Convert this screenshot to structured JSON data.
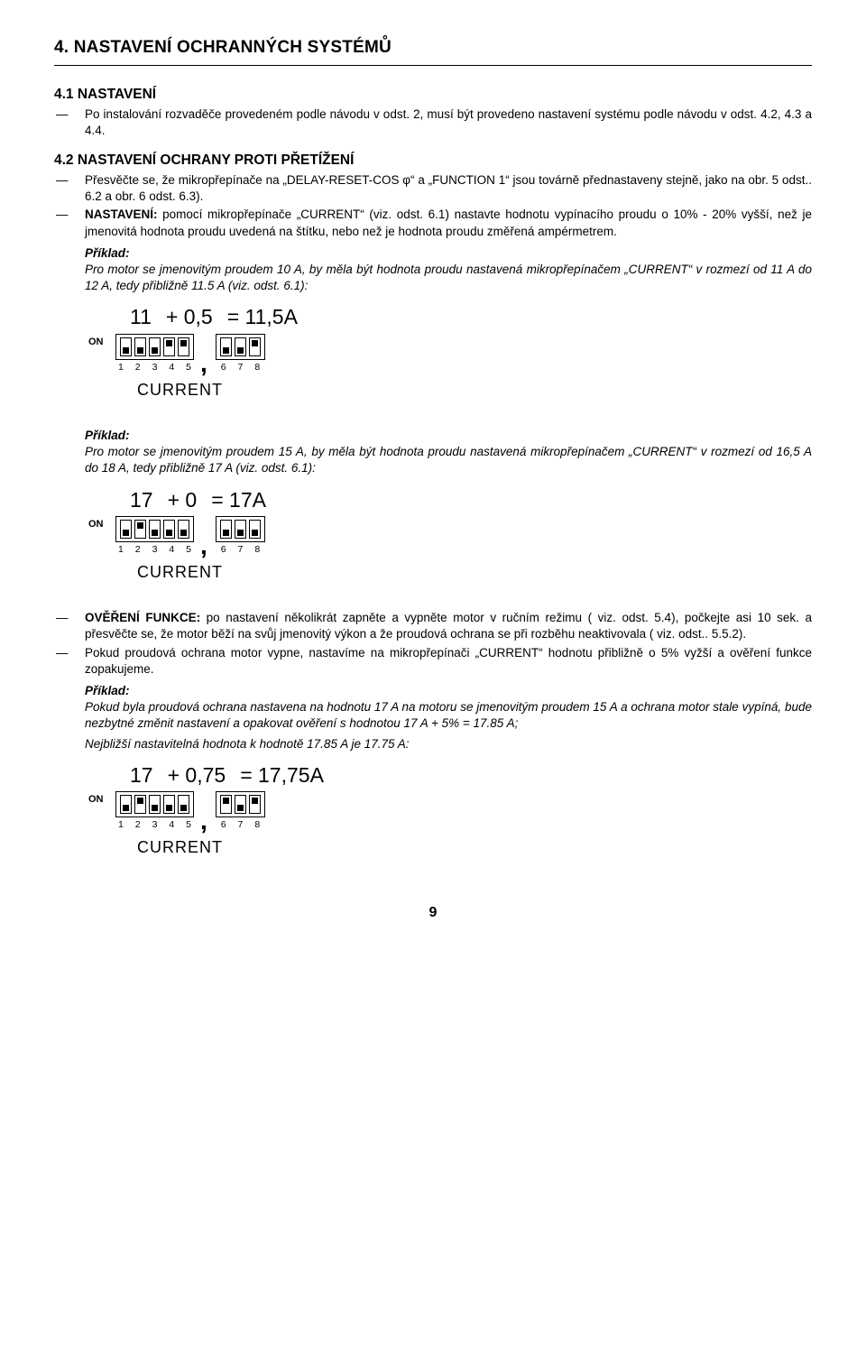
{
  "h1": "4. NASTAVENÍ OCHRANNÝCH SYSTÉMŮ",
  "s41": {
    "title": "4.1 NASTAVENÍ",
    "item1": "Po instalování rozvaděče provedeném podle návodu v odst. 2, musí být provedeno nastavení systému podle návodu v odst. 4.2, 4.3 a 4.4."
  },
  "s42": {
    "title": "4.2 NASTAVENÍ OCHRANY PROTI PŘETÍŽENÍ",
    "item1": "Přesvěčte se, že mikropřepínače na „DELAY-RESET-COS φ“ a „FUNCTION 1“ jsou továrně přednastaveny stejně, jako na obr. 5 odst.. 6.2 a obr. 6 odst. 6.3).",
    "item2_strong": "NASTAVENÍ:",
    "item2": " pomocí mikropřepínače „CURRENT“ (viz. odst. 6.1) nastavte hodnotu vypínacího proudu o 10% - 20% vyšší, než je jmenovitá hodnota proudu uvedená na štítku, nebo než je hodnota proudu změřená ampérmetrem."
  },
  "ex1": {
    "label": "Příklad:",
    "body": "Pro motor se jmenovitým proudem 10 A, by měla být hodnota proudu nastavená mikropřepínačem „CURRENT“ v rozmezí od 11 A do 12 A, tedy přibližně 11.5 A (viz. odst. 6.1):",
    "formula_a": "11",
    "formula_op": "+",
    "formula_b": "0,5",
    "formula_eq": "= 11,5A",
    "on": "ON",
    "nums15": [
      "1",
      "2",
      "3",
      "4",
      "5"
    ],
    "nums68": [
      "6",
      "7",
      "8"
    ],
    "current": "CURRENT",
    "sw15": [
      "down",
      "down",
      "down",
      "up",
      "up"
    ],
    "sw68": [
      "down",
      "down",
      "up"
    ]
  },
  "ex2": {
    "label": "Příklad:",
    "body": "Pro motor se jmenovitým proudem 15 A, by měla být hodnota proudu nastavená mikropřepínačem „CURRENT“ v rozmezí od 16,5 A do 18 A, tedy přibližně 17 A (viz. odst. 6.1):",
    "formula_a": "17",
    "formula_op": "+",
    "formula_b": "0",
    "formula_eq": "= 17A",
    "on": "ON",
    "nums15": [
      "1",
      "2",
      "3",
      "4",
      "5"
    ],
    "nums68": [
      "6",
      "7",
      "8"
    ],
    "current": "CURRENT",
    "sw15": [
      "down",
      "up",
      "down",
      "down",
      "down"
    ],
    "sw68": [
      "down",
      "down",
      "down"
    ]
  },
  "post": {
    "item1_strong": "OVĚŘENÍ FUNKCE:",
    "item1": " po nastavení několikrát zapněte a vypněte motor v ručním režimu ( viz. odst. 5.4), počkejte asi 10 sek. a přesvěčte se, že motor běží na svůj jmenovitý výkon a že proudová ochrana se při rozběhu neaktivovala ( viz. odst.. 5.5.2).",
    "item2": "Pokud proudová ochrana motor vypne, nastavíme na mikropřepínači „CURRENT“ hodnotu přibližně o 5% vyžší a ověření funkce zopakujeme."
  },
  "ex3": {
    "label": "Příklad:",
    "line1": "Pokud byla proudová ochrana nastavena na hodnotu 17 A na motoru se jmenovitým proudem 15 A a ochrana motor stale vypíná, bude nezbytné změnit nastavení a opakovat ověření s hodnotou 17 A + 5% = 17.85 A;",
    "line2": "Nejbližší nastavitelná hodnota k hodnotě 17.85 A je 17.75 A:",
    "formula_a": "17",
    "formula_op": "+",
    "formula_b": "0,75",
    "formula_eq": "= 17,75A",
    "on": "ON",
    "nums15": [
      "1",
      "2",
      "3",
      "4",
      "5"
    ],
    "nums68": [
      "6",
      "7",
      "8"
    ],
    "current": "CURRENT",
    "sw15": [
      "down",
      "up",
      "down",
      "down",
      "down"
    ],
    "sw68": [
      "up",
      "down",
      "up"
    ]
  },
  "page": "9"
}
